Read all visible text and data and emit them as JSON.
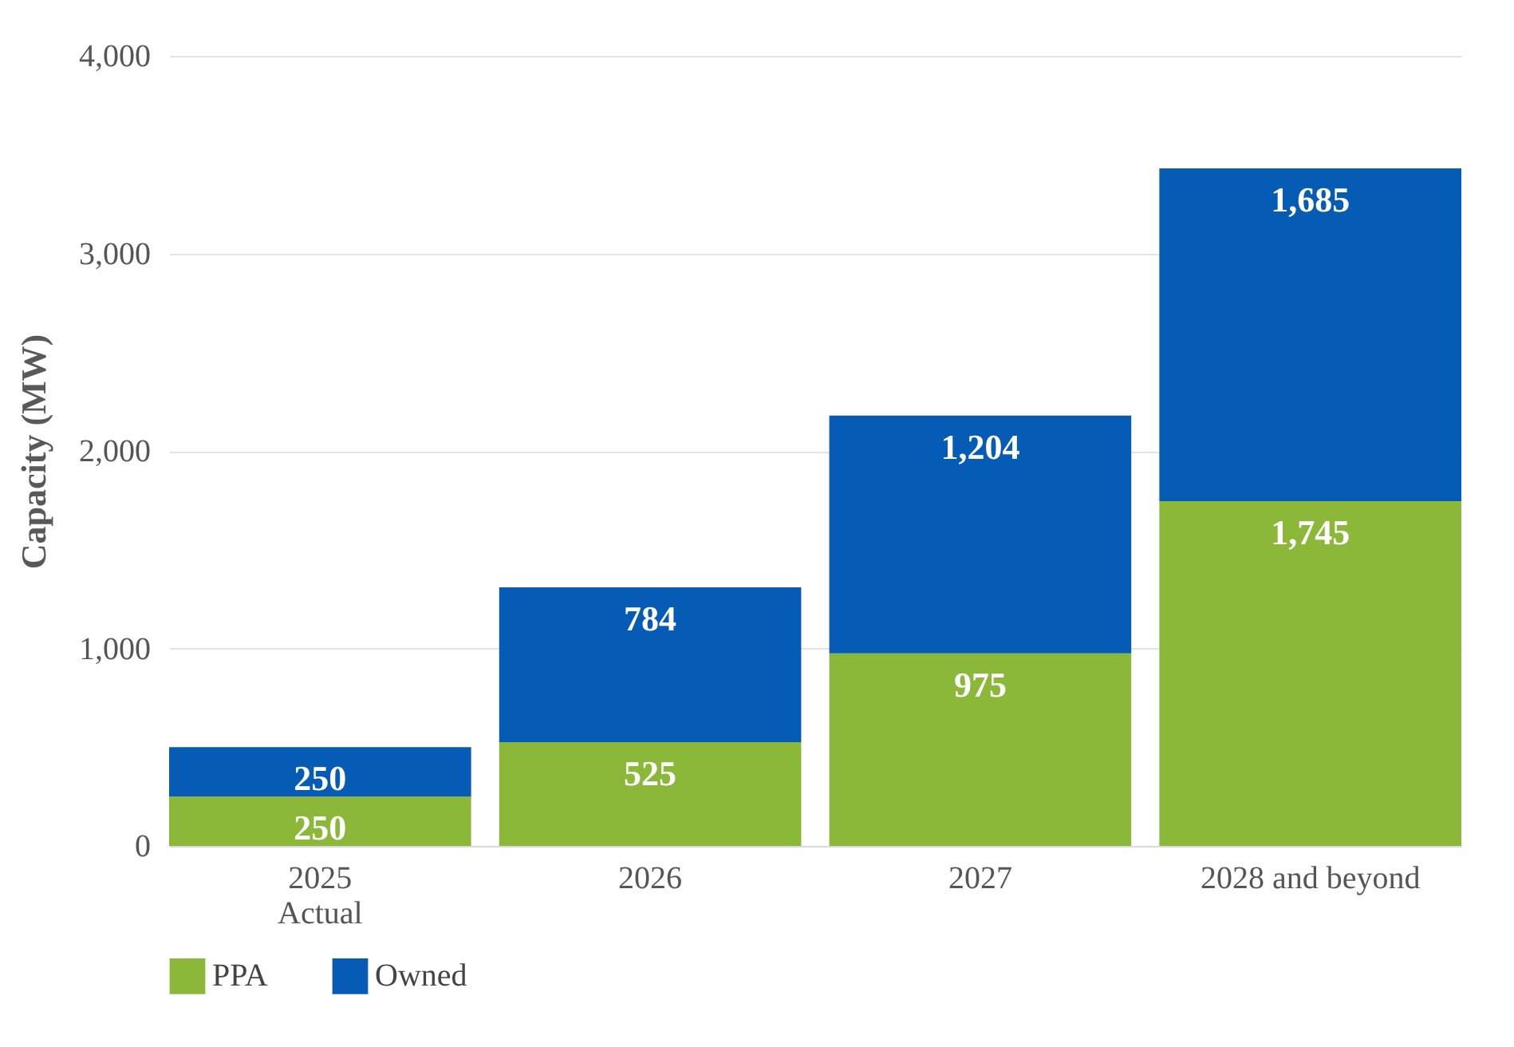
{
  "chart_data": {
    "type": "bar",
    "ylabel": "Capacity (MW)",
    "categories": [
      "2025\nActual",
      "2026",
      "2027",
      "2028 and beyond"
    ],
    "series": [
      {
        "name": "PPA",
        "color": "#8cb83a",
        "values": [
          250,
          525,
          975,
          1745
        ],
        "value_labels": [
          "250",
          "525",
          "975",
          "1,745"
        ]
      },
      {
        "name": "Owned",
        "color": "#065bb5",
        "values": [
          250,
          784,
          1204,
          1685
        ],
        "value_labels": [
          "250",
          "784",
          "1,204",
          "1,685"
        ]
      }
    ],
    "stacked": true,
    "ylim": [
      0,
      4000
    ],
    "yticks": [
      0,
      {
        "value": 1000,
        "label": "1,000"
      },
      {
        "value": 2000,
        "label": "2,000"
      },
      {
        "value": 3000,
        "label": "3,000"
      },
      {
        "value": 4000,
        "label": "4,000"
      }
    ],
    "grid": "y",
    "legend": "bottom"
  }
}
